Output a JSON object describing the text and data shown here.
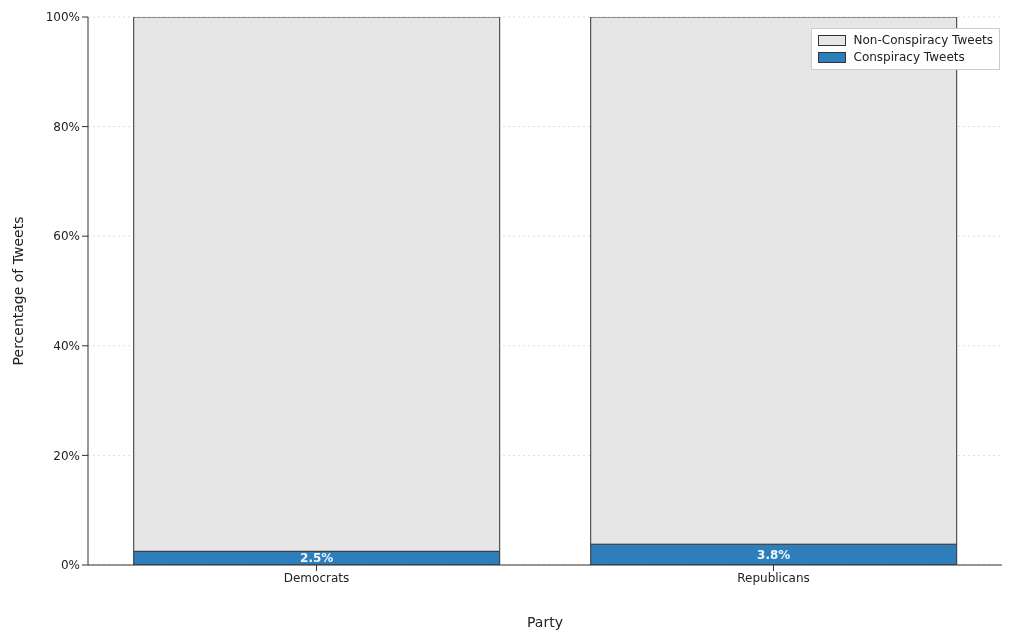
{
  "chart_data": {
    "type": "bar",
    "stacked": true,
    "xlabel": "Party",
    "ylabel": "Percentage of Tweets",
    "categories": [
      "Democrats",
      "Republicans"
    ],
    "series": [
      {
        "name": "Conspiracy Tweets",
        "color": "#2e7ebc",
        "values": [
          2.5,
          3.8
        ],
        "value_labels": [
          "2.5%",
          "3.8%"
        ]
      },
      {
        "name": "Non-Conspiracy Tweets",
        "color": "#e6e6e6",
        "values": [
          97.5,
          96.2
        ]
      }
    ],
    "ylim": [
      0,
      100
    ],
    "yticks": [
      {
        "value": 0,
        "label": "0%"
      },
      {
        "value": 20,
        "label": "20%"
      },
      {
        "value": 40,
        "label": "40%"
      },
      {
        "value": 60,
        "label": "60%"
      },
      {
        "value": 80,
        "label": "80%"
      },
      {
        "value": 100,
        "label": "100%"
      }
    ],
    "grid": "y",
    "legend": "top right"
  }
}
